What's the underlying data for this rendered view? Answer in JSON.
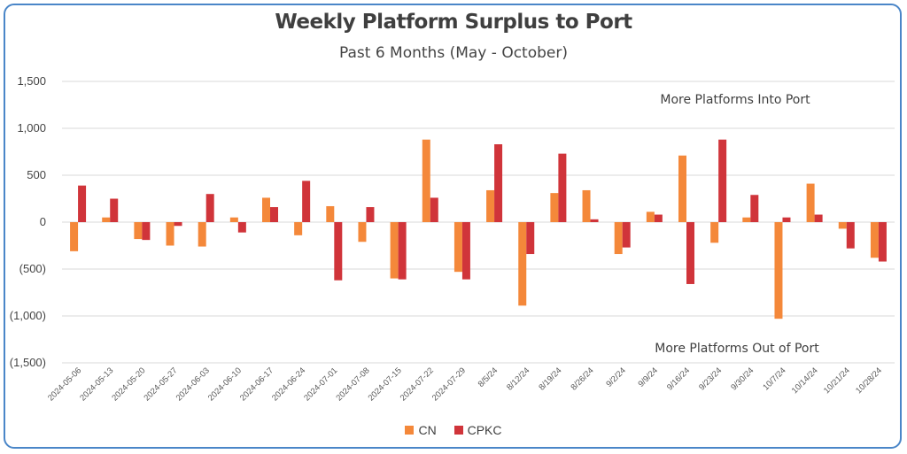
{
  "chart_data": {
    "type": "bar",
    "title": "Weekly Platform Surplus to Port",
    "subtitle": "Past 6 Months (May - October)",
    "categories": [
      "2024-05-06",
      "2024-05-13",
      "2024-05-20",
      "2024-05-27",
      "2024-06-03",
      "2024-06-10",
      "2024-06-17",
      "2024-06-24",
      "2024-07-01",
      "2024-07-08",
      "2024-07-15",
      "2024-07-22",
      "2024-07-29",
      "8/5/24",
      "8/12/24",
      "8/19/24",
      "8/26/24",
      "9/2/24",
      "9/9/24",
      "9/16/24",
      "9/23/24",
      "9/30/24",
      "10/7/24",
      "10/14/24",
      "10/21/24",
      "10/28/24"
    ],
    "series": [
      {
        "name": "CN",
        "color": "#f4883a",
        "values": [
          -310,
          50,
          -180,
          -250,
          -260,
          50,
          260,
          -140,
          170,
          -210,
          -600,
          880,
          -530,
          340,
          -890,
          310,
          340,
          -340,
          110,
          710,
          -220,
          50,
          -1030,
          410,
          -70,
          -380
        ]
      },
      {
        "name": "CPKC",
        "color": "#d0343a",
        "values": [
          390,
          250,
          -190,
          -40,
          300,
          -110,
          160,
          440,
          -620,
          160,
          -610,
          260,
          -610,
          830,
          -340,
          730,
          30,
          -270,
          80,
          -660,
          880,
          290,
          50,
          80,
          -280,
          -420
        ]
      }
    ],
    "y_tick_labels": [
      "1,500",
      "1,000",
      "500",
      "0",
      "(500)",
      "(1,000)",
      "(1,500)"
    ],
    "y_tick_values": [
      1500,
      1000,
      500,
      0,
      -500,
      -1000,
      -1500
    ],
    "ylim": [
      -1500,
      1500
    ],
    "grid": true,
    "legend_position": "bottom",
    "annotations": {
      "top": "More Platforms Into Port",
      "bottom": "More Platforms Out of Port"
    }
  }
}
